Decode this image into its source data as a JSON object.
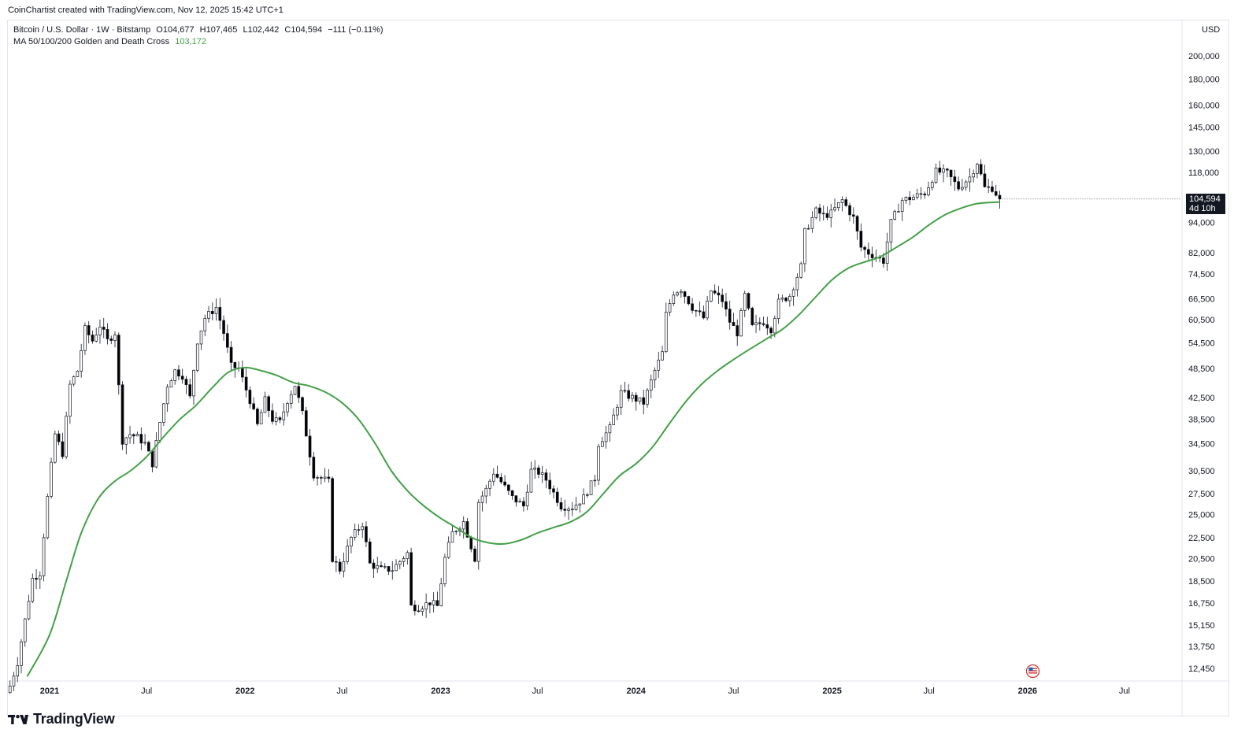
{
  "header": {
    "credit": "CoinChartist created with TradingView.com, Nov 12, 2025 15:42 UTC+1"
  },
  "legend": {
    "symbol": "Bitcoin / U.S. Dollar · 1W · Bitstamp",
    "open": "O104,677",
    "high": "H107,465",
    "low": "L102,442",
    "close": "C104,594",
    "change": "−111 (−0.11%)",
    "ma_label": "MA 50/100/200 Golden and Death Cross",
    "ma_value": "103,172"
  },
  "price_axis": {
    "currency": "USD",
    "current_price": "104,594",
    "countdown": "4d 10h"
  },
  "brand": {
    "name": "TradingView"
  },
  "colors": {
    "up": "#ffffff",
    "down": "#000000",
    "ma": "#43a047",
    "text": "#131722",
    "grid_border": "#e0e3eb"
  },
  "icons": {
    "event": "us-flag-icon",
    "logo": "tradingview-logo-icon"
  },
  "chart_data": {
    "type": "candlestick",
    "scale": "log",
    "interval": "1W",
    "ylim": [
      11800,
      235000
    ],
    "xlim": [
      "2020-10-15",
      "2026-10-15"
    ],
    "y_ticks": [
      200000,
      180000,
      160000,
      145000,
      130000,
      118000,
      94000,
      82000,
      74500,
      66500,
      60500,
      54500,
      48500,
      42500,
      38500,
      34500,
      30500,
      27500,
      25000,
      22500,
      20500,
      18500,
      16750,
      15150,
      13750,
      12450
    ],
    "y_tick_labels": [
      "200,000",
      "180,000",
      "160,000",
      "145,000",
      "130,000",
      "118,000",
      "94,000",
      "82,000",
      "74,500",
      "66,500",
      "60,500",
      "54,500",
      "48,500",
      "42,500",
      "38,500",
      "34,500",
      "30,500",
      "27,500",
      "25,000",
      "22,500",
      "20,500",
      "18,500",
      "16,750",
      "15,150",
      "13,750",
      "12,450"
    ],
    "x_ticks": [
      {
        "date": "2021-01-01",
        "label": "2021",
        "bold": true
      },
      {
        "date": "2021-07-01",
        "label": "Jul",
        "bold": false
      },
      {
        "date": "2022-01-01",
        "label": "2022",
        "bold": true
      },
      {
        "date": "2022-07-01",
        "label": "Jul",
        "bold": false
      },
      {
        "date": "2023-01-01",
        "label": "2023",
        "bold": true
      },
      {
        "date": "2023-07-01",
        "label": "Jul",
        "bold": false
      },
      {
        "date": "2024-01-01",
        "label": "2024",
        "bold": true
      },
      {
        "date": "2024-07-01",
        "label": "Jul",
        "bold": false
      },
      {
        "date": "2025-01-01",
        "label": "2025",
        "bold": true
      },
      {
        "date": "2025-07-01",
        "label": "Jul",
        "bold": false
      },
      {
        "date": "2026-01-01",
        "label": "2026",
        "bold": true
      },
      {
        "date": "2026-07-01",
        "label": "Jul",
        "bold": false
      }
    ],
    "price_anchors": [
      [
        "2020-10-19",
        11500
      ],
      [
        "2020-11-02",
        12800
      ],
      [
        "2020-11-16",
        15500
      ],
      [
        "2020-11-30",
        18700
      ],
      [
        "2020-12-14",
        19200
      ],
      [
        "2020-12-28",
        27000
      ],
      [
        "2021-01-11",
        36000
      ],
      [
        "2021-01-25",
        33000
      ],
      [
        "2021-02-08",
        45000
      ],
      [
        "2021-02-22",
        48000
      ],
      [
        "2021-03-08",
        58000
      ],
      [
        "2021-03-22",
        55000
      ],
      [
        "2021-04-05",
        59000
      ],
      [
        "2021-04-19",
        55000
      ],
      [
        "2021-05-03",
        57000
      ],
      [
        "2021-05-17",
        35000
      ],
      [
        "2021-05-31",
        36000
      ],
      [
        "2021-06-14",
        35500
      ],
      [
        "2021-06-28",
        34500
      ],
      [
        "2021-07-12",
        31500
      ],
      [
        "2021-07-26",
        38000
      ],
      [
        "2021-08-09",
        45000
      ],
      [
        "2021-08-23",
        48000
      ],
      [
        "2021-09-06",
        47000
      ],
      [
        "2021-09-20",
        42500
      ],
      [
        "2021-10-04",
        55000
      ],
      [
        "2021-10-18",
        61000
      ],
      [
        "2021-11-08",
        64000
      ],
      [
        "2021-11-22",
        57000
      ],
      [
        "2021-12-06",
        49000
      ],
      [
        "2021-12-20",
        48500
      ],
      [
        "2022-01-10",
        42000
      ],
      [
        "2022-01-24",
        37500
      ],
      [
        "2022-02-07",
        42000
      ],
      [
        "2022-02-21",
        38500
      ],
      [
        "2022-03-07",
        38000
      ],
      [
        "2022-03-21",
        42000
      ],
      [
        "2022-04-04",
        45000
      ],
      [
        "2022-04-18",
        39500
      ],
      [
        "2022-05-09",
        30000
      ],
      [
        "2022-05-23",
        29500
      ],
      [
        "2022-06-06",
        29000
      ],
      [
        "2022-06-13",
        20500
      ],
      [
        "2022-06-27",
        19500
      ],
      [
        "2022-07-18",
        22500
      ],
      [
        "2022-08-08",
        24000
      ],
      [
        "2022-08-22",
        20000
      ],
      [
        "2022-09-12",
        19500
      ],
      [
        "2022-10-03",
        19500
      ],
      [
        "2022-10-31",
        21000
      ],
      [
        "2022-11-07",
        16500
      ],
      [
        "2022-11-21",
        16400
      ],
      [
        "2022-12-12",
        16800
      ],
      [
        "2022-12-26",
        16500
      ],
      [
        "2023-01-09",
        20500
      ],
      [
        "2023-01-23",
        23000
      ],
      [
        "2023-02-13",
        24200
      ],
      [
        "2023-03-06",
        20500
      ],
      [
        "2023-03-13",
        26500
      ],
      [
        "2023-03-27",
        28000
      ],
      [
        "2023-04-10",
        30300
      ],
      [
        "2023-04-24",
        29000
      ],
      [
        "2023-05-15",
        27000
      ],
      [
        "2023-06-05",
        26000
      ],
      [
        "2023-06-19",
        30500
      ],
      [
        "2023-07-03",
        30300
      ],
      [
        "2023-07-17",
        29300
      ],
      [
        "2023-08-14",
        26000
      ],
      [
        "2023-09-04",
        25800
      ],
      [
        "2023-09-25",
        27000
      ],
      [
        "2023-10-16",
        29500
      ],
      [
        "2023-10-23",
        34500
      ],
      [
        "2023-11-13",
        37000
      ],
      [
        "2023-12-04",
        43500
      ],
      [
        "2023-12-25",
        42500
      ],
      [
        "2024-01-15",
        41500
      ],
      [
        "2024-02-05",
        48000
      ],
      [
        "2024-02-19",
        52000
      ],
      [
        "2024-02-26",
        62000
      ],
      [
        "2024-03-11",
        68500
      ],
      [
        "2024-03-25",
        69500
      ],
      [
        "2024-04-15",
        64000
      ],
      [
        "2024-05-06",
        61000
      ],
      [
        "2024-05-20",
        69000
      ],
      [
        "2024-06-10",
        66000
      ],
      [
        "2024-06-24",
        60000
      ],
      [
        "2024-07-08",
        57000
      ],
      [
        "2024-07-22",
        67500
      ],
      [
        "2024-08-05",
        58500
      ],
      [
        "2024-08-26",
        60000
      ],
      [
        "2024-09-09",
        58000
      ],
      [
        "2024-09-23",
        65500
      ],
      [
        "2024-10-14",
        67500
      ],
      [
        "2024-11-04",
        77000
      ],
      [
        "2024-11-11",
        90000
      ],
      [
        "2024-12-02",
        99000
      ],
      [
        "2024-12-16",
        97000
      ],
      [
        "2024-12-30",
        98000
      ],
      [
        "2025-01-20",
        104000
      ],
      [
        "2025-02-10",
        96000
      ],
      [
        "2025-02-24",
        84000
      ],
      [
        "2025-03-10",
        82000
      ],
      [
        "2025-04-07",
        79000
      ],
      [
        "2025-04-21",
        94000
      ],
      [
        "2025-05-12",
        104000
      ],
      [
        "2025-06-02",
        105500
      ],
      [
        "2025-06-23",
        107500
      ],
      [
        "2025-07-14",
        118500
      ],
      [
        "2025-08-04",
        117500
      ],
      [
        "2025-08-25",
        110000
      ],
      [
        "2025-09-15",
        115500
      ],
      [
        "2025-09-29",
        123500
      ],
      [
        "2025-10-13",
        110000
      ],
      [
        "2025-10-27",
        110000
      ],
      [
        "2025-11-10",
        104594
      ]
    ],
    "ma_anchors": [
      [
        "2020-11-20",
        12000
      ],
      [
        "2021-01-01",
        14500
      ],
      [
        "2021-02-01",
        18500
      ],
      [
        "2021-03-01",
        23000
      ],
      [
        "2021-04-01",
        26800
      ],
      [
        "2021-05-01",
        29000
      ],
      [
        "2021-06-01",
        30500
      ],
      [
        "2021-07-01",
        32500
      ],
      [
        "2021-08-01",
        35500
      ],
      [
        "2021-09-01",
        38500
      ],
      [
        "2021-10-01",
        41000
      ],
      [
        "2021-11-01",
        44500
      ],
      [
        "2021-12-01",
        47700
      ],
      [
        "2022-01-01",
        48700
      ],
      [
        "2022-02-01",
        48000
      ],
      [
        "2022-03-01",
        47000
      ],
      [
        "2022-04-01",
        45500
      ],
      [
        "2022-05-01",
        44800
      ],
      [
        "2022-06-01",
        43500
      ],
      [
        "2022-07-01",
        41500
      ],
      [
        "2022-08-01",
        38500
      ],
      [
        "2022-09-01",
        34500
      ],
      [
        "2022-10-01",
        30500
      ],
      [
        "2022-11-01",
        27800
      ],
      [
        "2022-12-01",
        26000
      ],
      [
        "2023-01-01",
        24600
      ],
      [
        "2023-02-01",
        23500
      ],
      [
        "2023-03-01",
        22500
      ],
      [
        "2023-04-01",
        22000
      ],
      [
        "2023-05-01",
        21900
      ],
      [
        "2023-06-01",
        22300
      ],
      [
        "2023-07-01",
        23000
      ],
      [
        "2023-08-01",
        23600
      ],
      [
        "2023-09-01",
        24200
      ],
      [
        "2023-10-01",
        25300
      ],
      [
        "2023-11-01",
        27500
      ],
      [
        "2023-12-01",
        29800
      ],
      [
        "2024-01-01",
        31500
      ],
      [
        "2024-02-01",
        34000
      ],
      [
        "2024-03-01",
        37500
      ],
      [
        "2024-04-01",
        41500
      ],
      [
        "2024-05-01",
        45000
      ],
      [
        "2024-06-01",
        48000
      ],
      [
        "2024-07-01",
        50500
      ],
      [
        "2024-08-01",
        53000
      ],
      [
        "2024-09-01",
        55500
      ],
      [
        "2024-10-01",
        58000
      ],
      [
        "2024-11-01",
        62000
      ],
      [
        "2024-12-01",
        67000
      ],
      [
        "2025-01-01",
        72500
      ],
      [
        "2025-02-01",
        76500
      ],
      [
        "2025-03-01",
        78500
      ],
      [
        "2025-04-01",
        80500
      ],
      [
        "2025-05-01",
        84000
      ],
      [
        "2025-06-01",
        88000
      ],
      [
        "2025-07-01",
        93000
      ],
      [
        "2025-08-01",
        97500
      ],
      [
        "2025-09-01",
        100500
      ],
      [
        "2025-10-01",
        102500
      ],
      [
        "2025-11-10",
        103172
      ]
    ]
  }
}
